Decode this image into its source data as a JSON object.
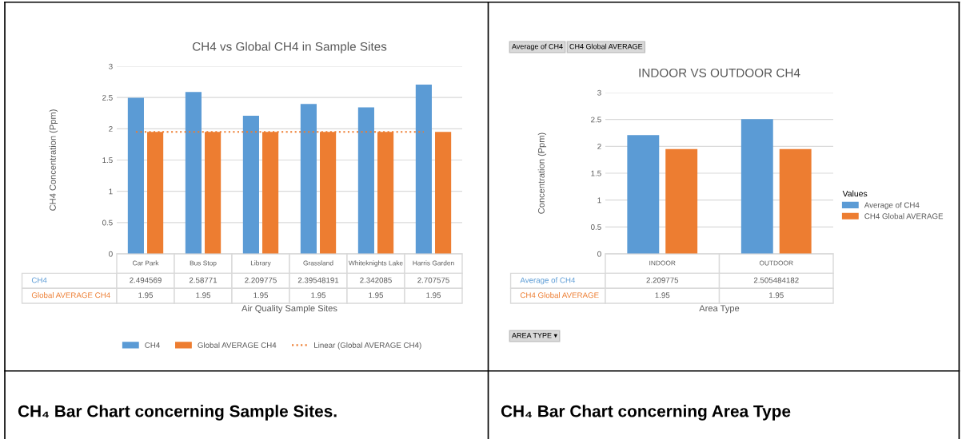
{
  "chart_data": [
    {
      "type": "bar",
      "title": "CH4 vs Global CH4 in Sample Sites",
      "xlabel": "Air Quality Sample Sites",
      "ylabel": "CH4 Concentration (Ppm)",
      "categories": [
        "Car Park",
        "Bus Stop",
        "Library",
        "Grassland",
        "Whiteknights Lake",
        "Harris Garden"
      ],
      "series": [
        {
          "name": "CH4",
          "color": "#5b9bd5",
          "values": [
            2.494569,
            2.58771,
            2.209775,
            2.39548191,
            2.342085,
            2.707575
          ],
          "value_labels": [
            "2.494569",
            "2.58771",
            "2.209775",
            "2.39548191",
            "2.342085",
            "2.707575"
          ]
        },
        {
          "name": "Global AVERAGE CH4",
          "color": "#ed7d31",
          "values": [
            1.95,
            1.95,
            1.95,
            1.95,
            1.95,
            1.95
          ],
          "value_labels": [
            "1.95",
            "1.95",
            "1.95",
            "1.95",
            "1.95",
            "1.95"
          ]
        },
        {
          "name": "Linear (Global AVERAGE CH4)",
          "color": "#ed7d31",
          "type": "line",
          "line_style": "dotted",
          "values": [
            1.95,
            1.95,
            1.95,
            1.95,
            1.95,
            1.95
          ]
        }
      ],
      "ylim": [
        0,
        3
      ],
      "yticks": [
        0,
        0.5,
        1,
        1.5,
        2,
        2.5,
        3
      ],
      "grid": "y",
      "legend": "bottom",
      "annotations": [
        "CH₄ Bar Chart concerning Sample Sites."
      ]
    },
    {
      "type": "bar",
      "title": "INDOOR VS OUTDOOR CH4",
      "xlabel": "Area Type",
      "ylabel": "Concentration (Ppm)",
      "legend_title": "Values",
      "categories": [
        "INDOOR",
        "OUTDOOR"
      ],
      "series": [
        {
          "name": "Average of CH4",
          "color": "#5b9bd5",
          "values": [
            2.209775,
            2.505484182
          ],
          "value_labels": [
            "2.209775",
            "2.505484182"
          ]
        },
        {
          "name": "CH4 Global AVERAGE",
          "color": "#ed7d31",
          "values": [
            1.95,
            1.95
          ],
          "value_labels": [
            "1.95",
            "1.95"
          ]
        }
      ],
      "ylim": [
        0,
        3
      ],
      "yticks": [
        0,
        0.5,
        1,
        1.5,
        2,
        2.5,
        3
      ],
      "grid": "y",
      "legend": "right",
      "annotations": [
        "Average of CH4",
        "CH4 Global AVERAGE",
        "AREA TYPE ▾",
        "CH₄ Bar Chart concerning Area Type"
      ]
    }
  ]
}
